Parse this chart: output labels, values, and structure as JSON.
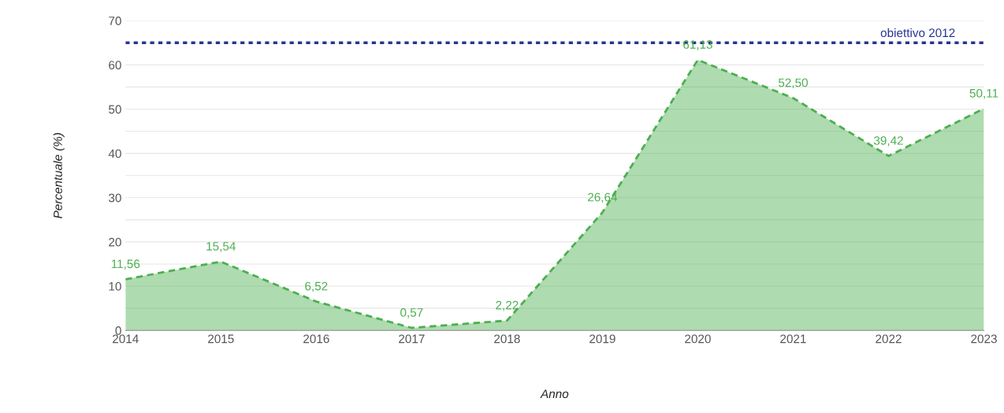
{
  "chart_data": {
    "type": "area",
    "xlabel": "Anno",
    "ylabel": "Percentuale (%)",
    "categories": [
      "2014",
      "2015",
      "2016",
      "2017",
      "2018",
      "2019",
      "2020",
      "2021",
      "2022",
      "2023"
    ],
    "series": [
      {
        "color": "#4caf50",
        "values": [
          11.56,
          15.54,
          6.52,
          0.57,
          2.22,
          26.64,
          61.13,
          52.5,
          39.42,
          50.11
        ],
        "value_labels": [
          "11,56",
          "15,54",
          "6,52",
          "0,57",
          "2,22",
          "26,64",
          "61,13",
          "52,50",
          "39,42",
          "50,11"
        ]
      }
    ],
    "ylim": [
      0,
      70
    ],
    "yticks": [
      0,
      {
        "value": 5,
        "label": null
      },
      10,
      {
        "value": 15,
        "label": null
      },
      20,
      {
        "value": 25,
        "label": null
      },
      30,
      {
        "value": 35,
        "label": null
      },
      40,
      {
        "value": 45,
        "label": null
      },
      50,
      {
        "value": 55,
        "label": null
      },
      60,
      {
        "value": 65,
        "label": null
      },
      70
    ],
    "grid": "y",
    "line_style": "dashed",
    "ref_lines": [
      {
        "axis": "y",
        "value": 65,
        "label": "obiettivo 2012",
        "color": "#283593",
        "line_style": "dotted"
      }
    ]
  }
}
